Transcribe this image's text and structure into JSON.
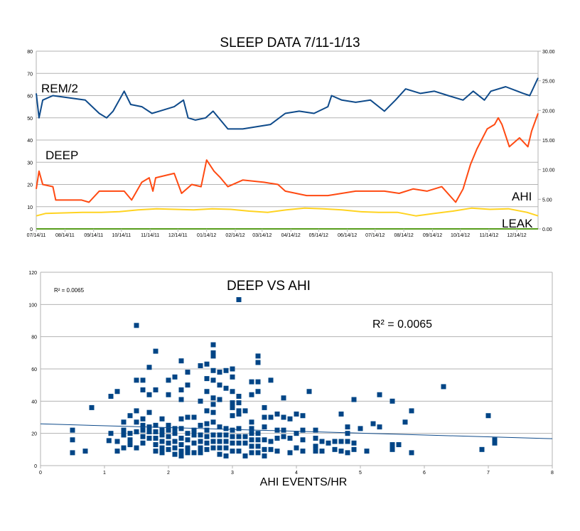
{
  "chart_data": [
    {
      "type": "line",
      "title": "SLEEP DATA  7/11-1/13",
      "x_unit": "days since 07/14/11",
      "x_tick_labels": [
        "07/14/11",
        "08/14/11",
        "09/14/11",
        "10/14/11",
        "11/14/11",
        "12/14/11",
        "01/14/12",
        "02/14/12",
        "03/14/12",
        "04/14/12",
        "05/14/12",
        "06/14/12",
        "07/14/12",
        "08/14/12",
        "09/14/12",
        "10/14/12",
        "11/14/12",
        "12/14/12"
      ],
      "x_tick_days": [
        0,
        31,
        62,
        92,
        123,
        153,
        184,
        215,
        244,
        275,
        305,
        336,
        366,
        397,
        428,
        458,
        489,
        519
      ],
      "xlim": [
        0,
        542
      ],
      "left_ylim": [
        0,
        80
      ],
      "left_ticks": [
        "0",
        "10",
        "20",
        "30",
        "40",
        "50",
        "60",
        "70",
        "80"
      ],
      "right_ylim": [
        0,
        30
      ],
      "right_ticks": [
        "0.00",
        "5.00",
        "10.00",
        "15.00",
        "20.00",
        "25.00",
        "30.00"
      ],
      "grid": true,
      "series": [
        {
          "name": "REM/2",
          "label": "REM/2",
          "axis": "left",
          "color": "#0e4a8a",
          "x": [
            0,
            3,
            7,
            18,
            53,
            68,
            76,
            83,
            95,
            102,
            114,
            125,
            133,
            149,
            159,
            164,
            172,
            183,
            191,
            199,
            207,
            223,
            238,
            253,
            269,
            284,
            300,
            315,
            319,
            330,
            345,
            361,
            376,
            388,
            399,
            415,
            430,
            445,
            461,
            472,
            484,
            491,
            507,
            526,
            533,
            542
          ],
          "y": [
            61,
            50,
            58,
            60,
            58,
            52,
            50,
            53,
            62,
            56,
            55,
            52,
            53,
            55,
            58,
            50,
            49,
            50,
            53,
            49,
            45,
            45,
            46,
            47,
            52,
            53,
            52,
            55,
            60,
            58,
            57,
            58,
            53,
            58,
            63,
            61,
            62,
            60,
            58,
            62,
            58,
            62,
            64,
            61,
            60,
            68
          ]
        },
        {
          "name": "DEEP",
          "label": "DEEP",
          "axis": "left",
          "color": "#ff4a12",
          "x": [
            0,
            3,
            7,
            18,
            21,
            49,
            57,
            68,
            84,
            95,
            103,
            114,
            122,
            126,
            129,
            149,
            157,
            168,
            178,
            184,
            192,
            199,
            207,
            223,
            246,
            261,
            269,
            292,
            315,
            330,
            345,
            376,
            392,
            407,
            422,
            438,
            453,
            461,
            469,
            476,
            487,
            495,
            499,
            503,
            511,
            522,
            531,
            535,
            542
          ],
          "y": [
            18,
            26,
            20,
            19,
            13,
            13,
            12,
            17,
            17,
            17,
            13,
            21,
            23,
            17,
            23,
            25,
            16,
            20,
            19,
            31,
            26,
            23,
            19,
            22,
            21,
            20,
            17,
            15,
            15,
            16,
            17,
            17,
            16,
            18,
            17,
            19,
            12,
            18,
            29,
            36,
            45,
            47,
            50,
            47,
            37,
            41,
            37,
            44,
            52
          ]
        },
        {
          "name": "AHI",
          "label": "AHI",
          "axis": "right",
          "color": "#ffd320",
          "x": [
            0,
            10,
            30,
            50,
            70,
            90,
            110,
            130,
            150,
            170,
            190,
            210,
            230,
            250,
            270,
            290,
            310,
            330,
            350,
            370,
            390,
            410,
            430,
            450,
            470,
            490,
            510,
            530,
            542
          ],
          "y": [
            2.2,
            2.6,
            2.7,
            2.8,
            2.8,
            2.9,
            3.2,
            3.4,
            3.3,
            3.2,
            3.4,
            3.3,
            3.0,
            2.8,
            3.2,
            3.5,
            3.4,
            3.2,
            2.9,
            2.8,
            2.8,
            2.2,
            2.6,
            3.0,
            3.5,
            3.3,
            3.4,
            2.8,
            2.2
          ]
        },
        {
          "name": "LEAK",
          "label": "LEAK",
          "axis": "right",
          "color": "#579d1c",
          "x": [
            0,
            542
          ],
          "y": [
            0,
            0
          ]
        }
      ]
    },
    {
      "type": "scatter",
      "title": "DEEP VS AHI",
      "xlabel": "AHI EVENTS/HR",
      "ylabel": "",
      "xlim": [
        0,
        8
      ],
      "ylim": [
        0,
        120
      ],
      "x_ticks": [
        "0",
        "1",
        "2",
        "3",
        "4",
        "5",
        "6",
        "7",
        "8"
      ],
      "y_ticks": [
        "0",
        "20",
        "40",
        "60",
        "80",
        "100",
        "120"
      ],
      "grid": true,
      "color": "#004586",
      "r_squared_label": "R² = 0.0065",
      "r_squared_small": "R² = 0.0065",
      "trendline": {
        "intercept": 25.9,
        "slope": -1.15
      },
      "points": [
        [
          0.5,
          22
        ],
        [
          0.5,
          16
        ],
        [
          0.5,
          8
        ],
        [
          0.7,
          9
        ],
        [
          0.8,
          36
        ],
        [
          1.07,
          15.5
        ],
        [
          1.1,
          20
        ],
        [
          1.1,
          43
        ],
        [
          1.2,
          46
        ],
        [
          1.2,
          15
        ],
        [
          1.2,
          9
        ],
        [
          1.3,
          27
        ],
        [
          1.3,
          22
        ],
        [
          1.3,
          19
        ],
        [
          1.3,
          11
        ],
        [
          1.4,
          31
        ],
        [
          1.4,
          20
        ],
        [
          1.4,
          16
        ],
        [
          1.4,
          13
        ],
        [
          1.5,
          87
        ],
        [
          1.5,
          53
        ],
        [
          1.5,
          34
        ],
        [
          1.5,
          27
        ],
        [
          1.5,
          21
        ],
        [
          1.5,
          11
        ],
        [
          1.6,
          53
        ],
        [
          1.6,
          47
        ],
        [
          1.6,
          29
        ],
        [
          1.6,
          25
        ],
        [
          1.6,
          22
        ],
        [
          1.6,
          18
        ],
        [
          1.6,
          14
        ],
        [
          1.7,
          61
        ],
        [
          1.7,
          44
        ],
        [
          1.7,
          33
        ],
        [
          1.7,
          24
        ],
        [
          1.7,
          21
        ],
        [
          1.7,
          17
        ],
        [
          1.8,
          71
        ],
        [
          1.8,
          47
        ],
        [
          1.8,
          25
        ],
        [
          1.8,
          21
        ],
        [
          1.8,
          17
        ],
        [
          1.8,
          13
        ],
        [
          1.8,
          9
        ],
        [
          1.9,
          29
        ],
        [
          1.9,
          22
        ],
        [
          1.9,
          19
        ],
        [
          1.9,
          15
        ],
        [
          1.9,
          11
        ],
        [
          1.9,
          8
        ],
        [
          2.0,
          53
        ],
        [
          2.0,
          44
        ],
        [
          2.0,
          25
        ],
        [
          2.0,
          22
        ],
        [
          2.0,
          18
        ],
        [
          2.0,
          14
        ],
        [
          2.0,
          10
        ],
        [
          2.1,
          55
        ],
        [
          2.1,
          23
        ],
        [
          2.1,
          20
        ],
        [
          2.1,
          15
        ],
        [
          2.1,
          11
        ],
        [
          2.1,
          7
        ],
        [
          2.2,
          65
        ],
        [
          2.2,
          47
        ],
        [
          2.2,
          41
        ],
        [
          2.2,
          29
        ],
        [
          2.2,
          23
        ],
        [
          2.2,
          17
        ],
        [
          2.2,
          13
        ],
        [
          2.2,
          9
        ],
        [
          2.2,
          6
        ],
        [
          2.3,
          58
        ],
        [
          2.3,
          50
        ],
        [
          2.3,
          30
        ],
        [
          2.3,
          20
        ],
        [
          2.3,
          16
        ],
        [
          2.3,
          11
        ],
        [
          2.3,
          8
        ],
        [
          2.4,
          30
        ],
        [
          2.4,
          22
        ],
        [
          2.4,
          19
        ],
        [
          2.4,
          14
        ],
        [
          2.4,
          8
        ],
        [
          2.5,
          62
        ],
        [
          2.5,
          40
        ],
        [
          2.5,
          25
        ],
        [
          2.5,
          19
        ],
        [
          2.5,
          15
        ],
        [
          2.5,
          11
        ],
        [
          2.5,
          8
        ],
        [
          2.6,
          63
        ],
        [
          2.6,
          54
        ],
        [
          2.6,
          46
        ],
        [
          2.6,
          34
        ],
        [
          2.6,
          26
        ],
        [
          2.6,
          22
        ],
        [
          2.6,
          18
        ],
        [
          2.6,
          14
        ],
        [
          2.6,
          10
        ],
        [
          2.7,
          75
        ],
        [
          2.7,
          70
        ],
        [
          2.7,
          68
        ],
        [
          2.7,
          59
        ],
        [
          2.7,
          53
        ],
        [
          2.7,
          42
        ],
        [
          2.7,
          38
        ],
        [
          2.7,
          33
        ],
        [
          2.7,
          27
        ],
        [
          2.7,
          19
        ],
        [
          2.7,
          15
        ],
        [
          2.7,
          11
        ],
        [
          2.8,
          58
        ],
        [
          2.8,
          50
        ],
        [
          2.8,
          41
        ],
        [
          2.8,
          24
        ],
        [
          2.8,
          19
        ],
        [
          2.8,
          15
        ],
        [
          2.8,
          11
        ],
        [
          2.8,
          7
        ],
        [
          2.9,
          59
        ],
        [
          2.9,
          48
        ],
        [
          2.9,
          23
        ],
        [
          2.9,
          19
        ],
        [
          2.9,
          15
        ],
        [
          2.9,
          11
        ],
        [
          2.9,
          6
        ],
        [
          3.0,
          60
        ],
        [
          3.0,
          55
        ],
        [
          3.0,
          46
        ],
        [
          3.0,
          39
        ],
        [
          3.0,
          36
        ],
        [
          3.0,
          31
        ],
        [
          3.0,
          22
        ],
        [
          3.0,
          18
        ],
        [
          3.0,
          14
        ],
        [
          3.0,
          9
        ],
        [
          3.1,
          103
        ],
        [
          3.1,
          43
        ],
        [
          3.1,
          39
        ],
        [
          3.1,
          34
        ],
        [
          3.1,
          32
        ],
        [
          3.1,
          23
        ],
        [
          3.1,
          18
        ],
        [
          3.1,
          14
        ],
        [
          3.1,
          9
        ],
        [
          3.2,
          34
        ],
        [
          3.2,
          18
        ],
        [
          3.2,
          14
        ],
        [
          3.2,
          6
        ],
        [
          3.3,
          52
        ],
        [
          3.3,
          44
        ],
        [
          3.3,
          27
        ],
        [
          3.3,
          23
        ],
        [
          3.3,
          20
        ],
        [
          3.3,
          16
        ],
        [
          3.3,
          12
        ],
        [
          3.3,
          8
        ],
        [
          3.4,
          68
        ],
        [
          3.4,
          64
        ],
        [
          3.4,
          52
        ],
        [
          3.4,
          46
        ],
        [
          3.4,
          20
        ],
        [
          3.4,
          16
        ],
        [
          3.4,
          12
        ],
        [
          3.4,
          8
        ],
        [
          3.5,
          36
        ],
        [
          3.5,
          30
        ],
        [
          3.5,
          24
        ],
        [
          3.5,
          16
        ],
        [
          3.5,
          10
        ],
        [
          3.5,
          6
        ],
        [
          3.6,
          53
        ],
        [
          3.6,
          30
        ],
        [
          3.6,
          15
        ],
        [
          3.6,
          10
        ],
        [
          3.7,
          32
        ],
        [
          3.7,
          22
        ],
        [
          3.7,
          17
        ],
        [
          3.7,
          9
        ],
        [
          3.8,
          42
        ],
        [
          3.8,
          30
        ],
        [
          3.8,
          22
        ],
        [
          3.8,
          18
        ],
        [
          3.9,
          29
        ],
        [
          3.9,
          17
        ],
        [
          3.9,
          8
        ],
        [
          4.0,
          32
        ],
        [
          4.0,
          20
        ],
        [
          4.0,
          11
        ],
        [
          4.1,
          31
        ],
        [
          4.1,
          22
        ],
        [
          4.1,
          16
        ],
        [
          4.1,
          9
        ],
        [
          4.2,
          46
        ],
        [
          4.3,
          22
        ],
        [
          4.3,
          17
        ],
        [
          4.3,
          12
        ],
        [
          4.3,
          9
        ],
        [
          4.4,
          15
        ],
        [
          4.4,
          9
        ],
        [
          4.5,
          14
        ],
        [
          4.6,
          15
        ],
        [
          4.6,
          10
        ],
        [
          4.7,
          32
        ],
        [
          4.7,
          15
        ],
        [
          4.7,
          9
        ],
        [
          4.8,
          24
        ],
        [
          4.8,
          20
        ],
        [
          4.8,
          15
        ],
        [
          4.8,
          8
        ],
        [
          4.9,
          41
        ],
        [
          4.9,
          14
        ],
        [
          4.9,
          10
        ],
        [
          5.0,
          23
        ],
        [
          5.1,
          9
        ],
        [
          5.2,
          26
        ],
        [
          5.3,
          44
        ],
        [
          5.3,
          24
        ],
        [
          5.5,
          40
        ],
        [
          5.5,
          13
        ],
        [
          5.5,
          10
        ],
        [
          5.6,
          13
        ],
        [
          5.7,
          27
        ],
        [
          5.8,
          34
        ],
        [
          5.8,
          8
        ],
        [
          6.3,
          49
        ],
        [
          6.9,
          10
        ],
        [
          7.0,
          31
        ],
        [
          7.1,
          16
        ],
        [
          7.1,
          14
        ]
      ]
    }
  ]
}
